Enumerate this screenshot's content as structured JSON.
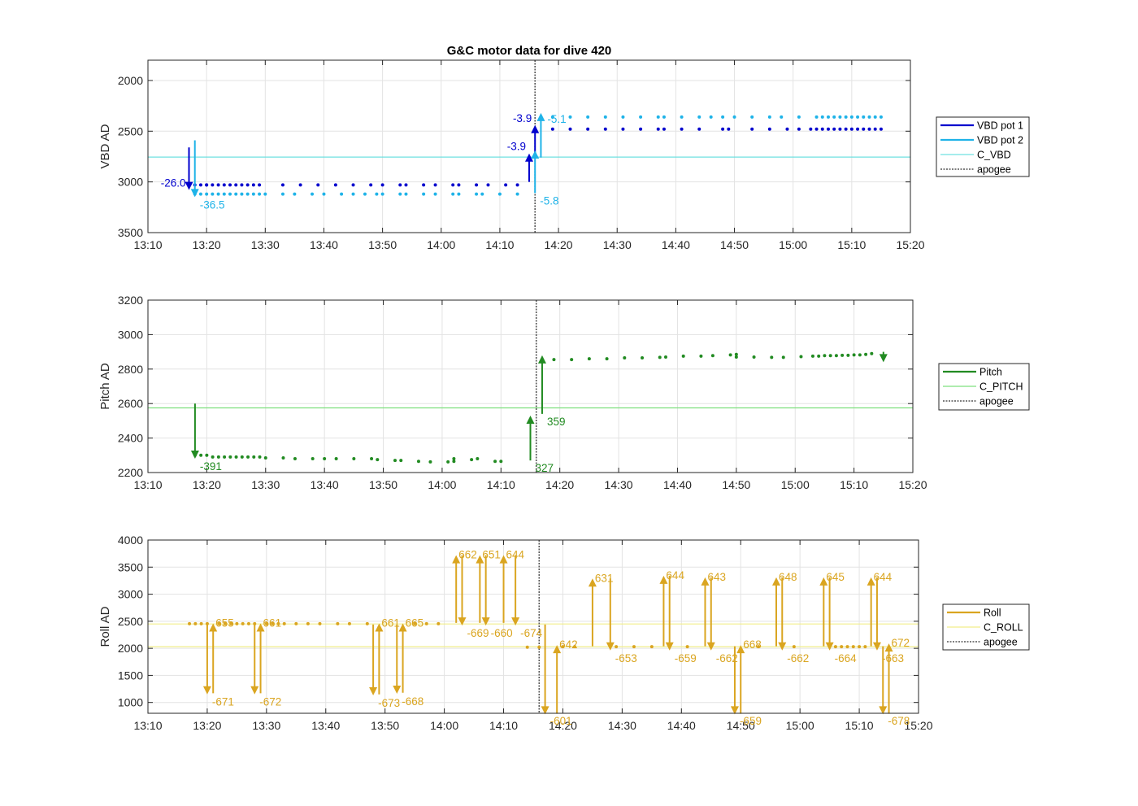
{
  "figure_title": "G&C motor data for dive 420",
  "chart_data": [
    {
      "type": "scatter",
      "ylabel": "VBD AD",
      "ylim": [
        3500,
        1800
      ],
      "y_reversed": true,
      "yticks": [
        2000,
        2500,
        3000,
        3500
      ],
      "xlim": [
        "13:10",
        "15:20"
      ],
      "xticks": [
        "13:10",
        "13:20",
        "13:30",
        "13:40",
        "13:50",
        "14:00",
        "14:10",
        "14:20",
        "14:30",
        "14:40",
        "14:50",
        "15:00",
        "15:10",
        "15:20"
      ],
      "grid": true,
      "legend_placement": "outside-right",
      "legend": [
        "VBD pot 1",
        "VBD pot 2",
        "C_VBD",
        "apogee"
      ],
      "colors": {
        "pot1": "#0000cd",
        "pot2": "#1fb3e8",
        "c_line": "#6fe0e0",
        "apogee": "#555555"
      },
      "reference_line": 2755,
      "apogee_x": "14:16",
      "series": [
        {
          "name": "VBD pot 1",
          "x": [
            "13:18",
            "13:19",
            "13:20",
            "13:20",
            "13:21",
            "13:22",
            "13:23",
            "13:24",
            "13:25",
            "13:26",
            "13:27",
            "13:28",
            "13:29",
            "13:33",
            "13:36",
            "13:39",
            "13:42",
            "13:45",
            "13:48",
            "13:50",
            "13:53",
            "13:54",
            "13:57",
            "13:59",
            "14:02",
            "14:03",
            "14:06",
            "14:08",
            "14:11",
            "14:13",
            "14:19",
            "14:22",
            "14:25",
            "14:28",
            "14:31",
            "14:34",
            "14:37",
            "14:38",
            "14:41",
            "14:44",
            "14:48",
            "14:49",
            "14:53",
            "14:56",
            "14:59",
            "15:01",
            "15:03",
            "15:04",
            "15:05",
            "15:06",
            "15:07",
            "15:08",
            "15:09",
            "15:10",
            "15:11",
            "15:12",
            "15:13",
            "15:14",
            "15:15"
          ],
          "y": [
            3030,
            3030,
            3030,
            3030,
            3030,
            3030,
            3030,
            3030,
            3030,
            3030,
            3030,
            3030,
            3030,
            3030,
            3030,
            3030,
            3030,
            3030,
            3030,
            3030,
            3030,
            3030,
            3030,
            3030,
            3030,
            3030,
            3030,
            3030,
            3030,
            3030,
            2480,
            2480,
            2480,
            2480,
            2480,
            2480,
            2480,
            2480,
            2480,
            2480,
            2480,
            2480,
            2480,
            2480,
            2480,
            2480,
            2480,
            2480,
            2480,
            2480,
            2480,
            2480,
            2480,
            2480,
            2480,
            2480,
            2480,
            2480,
            2480
          ]
        },
        {
          "name": "VBD pot 2",
          "x": [
            "13:18",
            "13:19",
            "13:20",
            "13:21",
            "13:22",
            "13:23",
            "13:24",
            "13:25",
            "13:26",
            "13:27",
            "13:28",
            "13:29",
            "13:30",
            "13:33",
            "13:35",
            "13:38",
            "13:40",
            "13:43",
            "13:45",
            "13:47",
            "13:49",
            "13:50",
            "13:53",
            "13:54",
            "13:57",
            "13:59",
            "14:02",
            "14:03",
            "14:06",
            "14:07",
            "14:10",
            "14:13",
            "14:17",
            "14:19",
            "14:22",
            "14:25",
            "14:28",
            "14:31",
            "14:34",
            "14:37",
            "14:38",
            "14:41",
            "14:44",
            "14:46",
            "14:48",
            "14:50",
            "14:53",
            "14:56",
            "14:58",
            "15:01",
            "15:04",
            "15:05",
            "15:06",
            "15:07",
            "15:08",
            "15:09",
            "15:10",
            "15:11",
            "15:12",
            "15:13",
            "15:14",
            "15:15"
          ],
          "y": [
            3120,
            3120,
            3120,
            3120,
            3120,
            3120,
            3120,
            3120,
            3120,
            3120,
            3120,
            3120,
            3120,
            3120,
            3120,
            3120,
            3120,
            3120,
            3120,
            3120,
            3120,
            3120,
            3120,
            3120,
            3120,
            3120,
            3120,
            3120,
            3120,
            3120,
            3120,
            3120,
            2360,
            2360,
            2360,
            2360,
            2360,
            2360,
            2360,
            2360,
            2360,
            2360,
            2360,
            2360,
            2360,
            2360,
            2360,
            2360,
            2360,
            2360,
            2360,
            2360,
            2360,
            2360,
            2360,
            2360,
            2360,
            2360,
            2360,
            2360,
            2360,
            2360
          ]
        }
      ],
      "arrows": [
        {
          "series": "VBD pot 1",
          "x": "13:17",
          "y_start": 2660,
          "y_end": 3080,
          "label": "-26.0",
          "label_pos": "left"
        },
        {
          "series": "VBD pot 2",
          "x": "13:18",
          "y_start": 2590,
          "y_end": 3150,
          "label": "-36.5",
          "label_pos": "right-below"
        },
        {
          "series": "VBD pot 1",
          "x": "14:15",
          "y_start": 3000,
          "y_end": 2720,
          "label": "-3.9",
          "label_pos": "left"
        },
        {
          "series": "VBD pot 1",
          "x": "14:16",
          "y_start": 2750,
          "y_end": 2440,
          "label": "-3.9",
          "label_pos": "left"
        },
        {
          "series": "VBD pot 2",
          "x": "14:16",
          "y_start": 3110,
          "y_end": 2690,
          "label": "-5.8",
          "label_pos": "right-below"
        },
        {
          "series": "VBD pot 2",
          "x": "14:17",
          "y_start": 2760,
          "y_end": 2320,
          "label": "-5.1",
          "label_pos": "right"
        }
      ]
    },
    {
      "type": "scatter",
      "ylabel": "Pitch AD",
      "ylim": [
        2200,
        3200
      ],
      "yticks": [
        2200,
        2400,
        2600,
        2800,
        3000,
        3200
      ],
      "xlim": [
        "13:10",
        "15:20"
      ],
      "xticks": [
        "13:10",
        "13:20",
        "13:30",
        "13:40",
        "13:50",
        "14:00",
        "14:10",
        "14:20",
        "14:30",
        "14:40",
        "14:50",
        "15:00",
        "15:10",
        "15:20"
      ],
      "grid": true,
      "legend_placement": "outside-right",
      "legend": [
        "Pitch",
        "C_PITCH",
        "apogee"
      ],
      "colors": {
        "pitch": "#228b22",
        "c_line": "#7ee07e",
        "apogee": "#555555"
      },
      "reference_line": 2575,
      "apogee_x": "14:16",
      "series": [
        {
          "name": "Pitch",
          "x": [
            "13:18",
            "13:19",
            "13:20",
            "13:21",
            "13:22",
            "13:23",
            "13:24",
            "13:25",
            "13:26",
            "13:27",
            "13:28",
            "13:29",
            "13:30",
            "13:33",
            "13:35",
            "13:38",
            "13:40",
            "13:42",
            "13:45",
            "13:48",
            "13:49",
            "13:52",
            "13:53",
            "13:56",
            "13:58",
            "14:01",
            "14:02",
            "14:02",
            "14:05",
            "14:06",
            "14:09",
            "14:10",
            "14:19",
            "14:22",
            "14:25",
            "14:28",
            "14:31",
            "14:34",
            "14:37",
            "14:38",
            "14:41",
            "14:44",
            "14:46",
            "14:49",
            "14:50",
            "14:50",
            "14:53",
            "14:56",
            "14:58",
            "15:01",
            "15:03",
            "15:04",
            "15:05",
            "15:06",
            "15:07",
            "15:08",
            "15:09",
            "15:10",
            "15:11",
            "15:12",
            "15:13"
          ],
          "y": [
            2300,
            2300,
            2300,
            2290,
            2290,
            2290,
            2290,
            2290,
            2290,
            2290,
            2290,
            2290,
            2285,
            2285,
            2280,
            2280,
            2280,
            2280,
            2280,
            2280,
            2275,
            2270,
            2270,
            2265,
            2262,
            2262,
            2265,
            2280,
            2275,
            2280,
            2265,
            2265,
            2855,
            2855,
            2860,
            2860,
            2865,
            2865,
            2868,
            2870,
            2875,
            2875,
            2878,
            2882,
            2870,
            2885,
            2870,
            2868,
            2868,
            2872,
            2875,
            2875,
            2878,
            2878,
            2878,
            2880,
            2880,
            2882,
            2882,
            2885,
            2890
          ]
        }
      ],
      "arrows": [
        {
          "series": "Pitch",
          "x": "13:18",
          "y_start": 2600,
          "y_end": 2280,
          "label": "-391",
          "label_pos": "right-below"
        },
        {
          "series": "Pitch",
          "x": "14:15",
          "y_start": 2270,
          "y_end": 2530,
          "label": "327",
          "label_pos": "right-below"
        },
        {
          "series": "Pitch",
          "x": "14:17",
          "y_start": 2540,
          "y_end": 2880,
          "label": "359",
          "label_pos": "right-below"
        },
        {
          "series": "Pitch",
          "x": "15:15",
          "y_start": 2900,
          "y_end": 2840,
          "label": "",
          "label_pos": "right"
        }
      ]
    },
    {
      "type": "scatter",
      "ylabel": "Roll AD",
      "ylim": [
        800,
        4000
      ],
      "yticks": [
        1000,
        1500,
        2000,
        2500,
        3000,
        3500,
        4000
      ],
      "xlim": [
        "13:10",
        "15:20"
      ],
      "xticks": [
        "13:10",
        "13:20",
        "13:30",
        "13:40",
        "13:50",
        "14:00",
        "14:10",
        "14:20",
        "14:30",
        "14:40",
        "14:50",
        "15:00",
        "15:10",
        "15:20"
      ],
      "grid": true,
      "legend_placement": "outside-right",
      "legend": [
        "Roll",
        "C_ROLL",
        "apogee"
      ],
      "colors": {
        "roll": "#daa520",
        "c_line": "#f2ee8a",
        "apogee": "#555555"
      },
      "reference_lines": [
        2450,
        2030
      ],
      "apogee_x": "14:16",
      "series": [
        {
          "name": "Roll",
          "x": [
            "13:17",
            "13:18",
            "13:19",
            "13:20",
            "13:22",
            "13:23",
            "13:24",
            "13:25",
            "13:26",
            "13:27",
            "13:28",
            "13:30",
            "13:31",
            "13:32",
            "13:33",
            "13:35",
            "13:37",
            "13:39",
            "13:42",
            "13:44",
            "13:47",
            "13:55",
            "13:57",
            "13:59",
            "14:14",
            "14:16",
            "14:20",
            "14:22",
            "14:29",
            "14:32",
            "14:35",
            "14:41",
            "14:45",
            "14:53",
            "14:59",
            "15:06",
            "15:07",
            "15:08",
            "15:09",
            "15:10",
            "15:11"
          ],
          "y": [
            2455,
            2455,
            2455,
            2455,
            2455,
            2455,
            2455,
            2455,
            2455,
            2455,
            2455,
            2455,
            2455,
            2455,
            2455,
            2455,
            2455,
            2455,
            2455,
            2455,
            2455,
            2455,
            2455,
            2455,
            2020,
            2020,
            2030,
            2030,
            2030,
            2030,
            2030,
            2030,
            2030,
            2030,
            2030,
            2030,
            2030,
            2030,
            2030,
            2030,
            2030
          ]
        }
      ],
      "arrows": [
        {
          "series": "Roll",
          "x": "13:20",
          "y_start": 2440,
          "y_end": 1150,
          "label": "-671",
          "label_pos": "right-below"
        },
        {
          "series": "Roll",
          "x": "13:21",
          "y_start": 1170,
          "y_end": 2460,
          "label": "655",
          "label_pos": "right-above"
        },
        {
          "series": "Roll",
          "x": "13:28",
          "y_start": 2440,
          "y_end": 1150,
          "label": "-672",
          "label_pos": "right-below"
        },
        {
          "series": "Roll",
          "x": "13:29",
          "y_start": 1170,
          "y_end": 2460,
          "label": "661",
          "label_pos": "right-above"
        },
        {
          "series": "Roll",
          "x": "13:48",
          "y_start": 2440,
          "y_end": 1130,
          "label": "-673",
          "label_pos": "right-below"
        },
        {
          "series": "Roll",
          "x": "13:49",
          "y_start": 1150,
          "y_end": 2460,
          "label": "661",
          "label_pos": "right-above"
        },
        {
          "series": "Roll",
          "x": "13:52",
          "y_start": 2440,
          "y_end": 1160,
          "label": "-668",
          "label_pos": "right-below"
        },
        {
          "series": "Roll",
          "x": "13:53",
          "y_start": 1180,
          "y_end": 2460,
          "label": "665",
          "label_pos": "right-above"
        },
        {
          "series": "Roll",
          "x": "14:02",
          "y_start": 2470,
          "y_end": 3720,
          "label": "662",
          "label_pos": "right-above"
        },
        {
          "series": "Roll",
          "x": "14:03",
          "y_start": 3720,
          "y_end": 2420,
          "label": "-669",
          "label_pos": "right-below"
        },
        {
          "series": "Roll",
          "x": "14:06",
          "y_start": 2470,
          "y_end": 3720,
          "label": "651",
          "label_pos": "right-above"
        },
        {
          "series": "Roll",
          "x": "14:07",
          "y_start": 3720,
          "y_end": 2420,
          "label": "-660",
          "label_pos": "right-below"
        },
        {
          "series": "Roll",
          "x": "14:10",
          "y_start": 2470,
          "y_end": 3720,
          "label": "644",
          "label_pos": "right-above"
        },
        {
          "series": "Roll",
          "x": "14:12",
          "y_start": 3720,
          "y_end": 2420,
          "label": "-674",
          "label_pos": "right-below"
        },
        {
          "series": "Roll",
          "x": "14:17",
          "y_start": 2440,
          "y_end": 780,
          "label": "-601",
          "label_pos": "right-below"
        },
        {
          "series": "Roll",
          "x": "14:19",
          "y_start": 790,
          "y_end": 2060,
          "label": "642",
          "label_pos": "right-above"
        },
        {
          "series": "Roll",
          "x": "14:25",
          "y_start": 2040,
          "y_end": 3290,
          "label": "631",
          "label_pos": "right-above"
        },
        {
          "series": "Roll",
          "x": "14:28",
          "y_start": 3290,
          "y_end": 1960,
          "label": "-653",
          "label_pos": "right-below"
        },
        {
          "series": "Roll",
          "x": "14:37",
          "y_start": 2040,
          "y_end": 3340,
          "label": "644",
          "label_pos": "right-above"
        },
        {
          "series": "Roll",
          "x": "14:38",
          "y_start": 3340,
          "y_end": 1960,
          "label": "-659",
          "label_pos": "right-below"
        },
        {
          "series": "Roll",
          "x": "14:44",
          "y_start": 2040,
          "y_end": 3310,
          "label": "643",
          "label_pos": "right-above"
        },
        {
          "series": "Roll",
          "x": "14:45",
          "y_start": 3310,
          "y_end": 1960,
          "label": "-662",
          "label_pos": "right-below"
        },
        {
          "series": "Roll",
          "x": "14:49",
          "y_start": 2040,
          "y_end": 780,
          "label": "-659",
          "label_pos": "right-below"
        },
        {
          "series": "Roll",
          "x": "14:50",
          "y_start": 790,
          "y_end": 2060,
          "label": "668",
          "label_pos": "right-above"
        },
        {
          "series": "Roll",
          "x": "14:56",
          "y_start": 2040,
          "y_end": 3310,
          "label": "648",
          "label_pos": "right-above"
        },
        {
          "series": "Roll",
          "x": "14:57",
          "y_start": 3310,
          "y_end": 1960,
          "label": "-662",
          "label_pos": "right-below"
        },
        {
          "series": "Roll",
          "x": "15:04",
          "y_start": 2040,
          "y_end": 3310,
          "label": "645",
          "label_pos": "right-above"
        },
        {
          "series": "Roll",
          "x": "15:05",
          "y_start": 3310,
          "y_end": 1960,
          "label": "-664",
          "label_pos": "right-below"
        },
        {
          "series": "Roll",
          "x": "15:12",
          "y_start": 2040,
          "y_end": 3310,
          "label": "644",
          "label_pos": "right-above"
        },
        {
          "series": "Roll",
          "x": "15:13",
          "y_start": 3310,
          "y_end": 1960,
          "label": "-663",
          "label_pos": "right-below"
        },
        {
          "series": "Roll",
          "x": "15:14",
          "y_start": 2040,
          "y_end": 780,
          "label": "-678",
          "label_pos": "right-below"
        },
        {
          "series": "Roll",
          "x": "15:15",
          "y_start": 790,
          "y_end": 2090,
          "label": "672",
          "label_pos": "right-above"
        }
      ]
    }
  ]
}
